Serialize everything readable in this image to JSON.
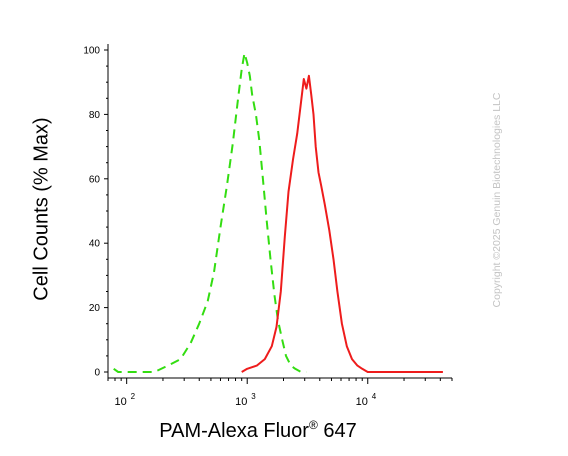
{
  "chart_data": {
    "type": "line",
    "ylabel": "Cell Counts (% Max)",
    "xlabel_main": "PAM-Alexa Fluor",
    "xlabel_sup": "®",
    "xlabel_tail": " 647",
    "xscale": "log",
    "xlim": [
      70,
      50000
    ],
    "ylim": [
      0,
      100
    ],
    "yticks": [
      0,
      20,
      40,
      60,
      80,
      100
    ],
    "yticklabels": [
      "0",
      "20",
      "40",
      "60",
      "80",
      "100"
    ],
    "xticks": [
      100,
      1000,
      10000
    ],
    "xticklabels": [
      {
        "base": "10",
        "exp": "2"
      },
      {
        "base": "10",
        "exp": "3"
      },
      {
        "base": "10",
        "exp": "4"
      }
    ],
    "grid": false,
    "legend": "none",
    "series": [
      {
        "color": "#33dd11",
        "style": "dashed",
        "x": [
          78,
          85,
          100,
          130,
          170,
          220,
          280,
          340,
          400,
          470,
          530,
          600,
          680,
          760,
          840,
          900,
          950,
          1000,
          1050,
          1100,
          1180,
          1260,
          1350,
          1450,
          1560,
          1680,
          1800,
          1950,
          2100,
          2300,
          2500,
          2800,
          3100
        ],
        "y": [
          1,
          0,
          0,
          0,
          0,
          2,
          4,
          9,
          15,
          22,
          31,
          45,
          58,
          71,
          85,
          94,
          99,
          96,
          92,
          86,
          80,
          72,
          60,
          47,
          35,
          24,
          16,
          10,
          5,
          2,
          1,
          0,
          0
        ]
      },
      {
        "color": "#ee1c1c",
        "style": "solid",
        "x": [
          900,
          1000,
          1200,
          1400,
          1600,
          1750,
          1900,
          2050,
          2200,
          2400,
          2600,
          2800,
          2950,
          3100,
          3250,
          3400,
          3550,
          3700,
          3900,
          4100,
          4400,
          4800,
          5200,
          5600,
          6100,
          6700,
          7400,
          8200,
          9000,
          10000,
          11000,
          12000,
          14000,
          17000,
          22000,
          30000,
          42000
        ],
        "y": [
          0,
          1,
          2,
          4,
          8,
          14,
          25,
          42,
          56,
          66,
          74,
          84,
          91,
          88,
          92,
          86,
          80,
          70,
          62,
          58,
          52,
          44,
          35,
          25,
          15,
          8,
          4,
          2,
          1,
          0,
          0,
          0,
          0,
          0,
          0,
          0,
          0
        ]
      }
    ]
  },
  "copyright": "Copyright ©2025 Genuin Biotechnologies LLC"
}
